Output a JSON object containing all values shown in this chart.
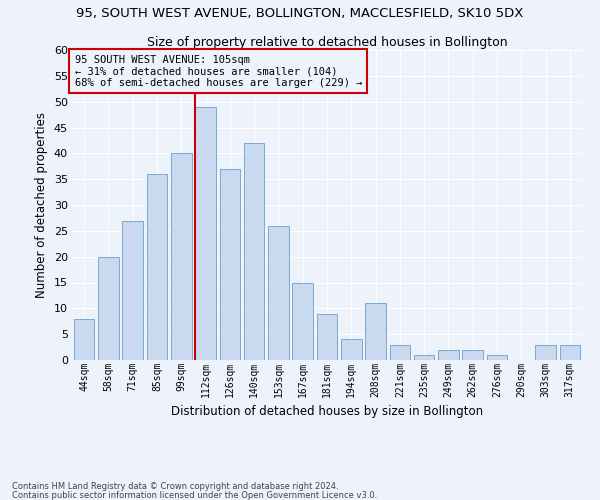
{
  "title": "95, SOUTH WEST AVENUE, BOLLINGTON, MACCLESFIELD, SK10 5DX",
  "subtitle": "Size of property relative to detached houses in Bollington",
  "xlabel": "Distribution of detached houses by size in Bollington",
  "ylabel": "Number of detached properties",
  "categories": [
    "44sqm",
    "58sqm",
    "71sqm",
    "85sqm",
    "99sqm",
    "112sqm",
    "126sqm",
    "140sqm",
    "153sqm",
    "167sqm",
    "181sqm",
    "194sqm",
    "208sqm",
    "221sqm",
    "235sqm",
    "249sqm",
    "262sqm",
    "276sqm",
    "290sqm",
    "303sqm",
    "317sqm"
  ],
  "values": [
    8,
    20,
    27,
    36,
    40,
    49,
    37,
    42,
    26,
    15,
    9,
    4,
    11,
    3,
    1,
    2,
    2,
    1,
    0,
    3,
    3
  ],
  "bar_color": "#c9d9f0",
  "bar_edge_color": "#7aaad0",
  "vline_color": "#cc0000",
  "vline_index": 5,
  "ylim": [
    0,
    60
  ],
  "yticks": [
    0,
    5,
    10,
    15,
    20,
    25,
    30,
    35,
    40,
    45,
    50,
    55,
    60
  ],
  "annotation_text": "95 SOUTH WEST AVENUE: 105sqm\n← 31% of detached houses are smaller (104)\n68% of semi-detached houses are larger (229) →",
  "bg_color": "#eef2fb",
  "grid_color": "#ffffff",
  "footer_line1": "Contains HM Land Registry data © Crown copyright and database right 2024.",
  "footer_line2": "Contains public sector information licensed under the Open Government Licence v3.0."
}
